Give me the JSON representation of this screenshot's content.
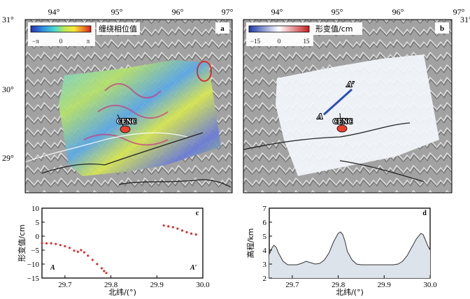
{
  "map_a": {
    "panel_label": "a",
    "colorbar_title": "缠绕相位值",
    "colorbar_ticks": [
      "−π",
      "0",
      "π"
    ],
    "lon_ticks": [
      "94°",
      "95°",
      "96°",
      "97°"
    ],
    "lat_ticks": [
      "31°",
      "30°",
      "29°"
    ],
    "station": "CENC"
  },
  "map_b": {
    "panel_label": "b",
    "colorbar_title": "形变值/cm",
    "colorbar_ticks": [
      "−15",
      "0",
      "15"
    ],
    "lon_ticks": [
      "94°",
      "95°",
      "96°",
      "97°"
    ],
    "lat_ticks": [
      "31°"
    ],
    "station": "CENC",
    "profile_start": "A",
    "profile_end": "A′"
  },
  "colors": {
    "relief": "#9e9e9e",
    "epicenter": "#e8402a",
    "profile_line": "#2a4fb8",
    "deformation_points": "#d93030",
    "elevation_fill": "#dde3ea"
  },
  "chart_data": [
    {
      "type": "scatter",
      "panel_label": "c",
      "xlabel": "北纬/(°)",
      "ylabel": "形变值/cm",
      "xlim": [
        29.65,
        30.0
      ],
      "ylim": [
        -15,
        10
      ],
      "x_ticks": [
        "29.7",
        "29.8",
        "29.9",
        "30.0"
      ],
      "y_ticks": [
        "10",
        "5",
        "0",
        "−5",
        "−10",
        "−15"
      ],
      "start_label": "A",
      "end_label": "A′",
      "series": [
        {
          "x": [
            29.65,
            29.66,
            29.67,
            29.68,
            29.69,
            29.7,
            29.71,
            29.72,
            29.728,
            29.735,
            29.742,
            29.75,
            29.76,
            29.77,
            29.78,
            29.785,
            29.79
          ],
          "y": [
            -2.5,
            -2.6,
            -2.6,
            -2.8,
            -3.2,
            -3.6,
            -4.2,
            -5.2,
            -5.6,
            -5.0,
            -5.8,
            -7.0,
            -8.5,
            -10.0,
            -11.5,
            -12.5,
            -13.2
          ]
        },
        {
          "x": [
            29.915,
            29.925,
            29.935,
            29.945,
            29.955,
            29.965,
            29.975,
            29.985
          ],
          "y": [
            3.8,
            3.5,
            3.2,
            2.7,
            2.0,
            1.4,
            0.9,
            0.6
          ]
        }
      ]
    },
    {
      "type": "area",
      "panel_label": "d",
      "xlabel": "北纬/(°)",
      "ylabel": "高程/km",
      "xlim": [
        29.65,
        30.0
      ],
      "ylim": [
        2,
        7
      ],
      "x_ticks": [
        "29.7",
        "29.8",
        "29.9",
        "30.0"
      ],
      "y_ticks": [
        "7",
        "6",
        "5",
        "4",
        "3",
        "2"
      ],
      "x": [
        29.65,
        29.655,
        29.66,
        29.665,
        29.67,
        29.68,
        29.69,
        29.7,
        29.71,
        29.72,
        29.73,
        29.74,
        29.75,
        29.76,
        29.77,
        29.78,
        29.79,
        29.8,
        29.805,
        29.81,
        29.815,
        29.82,
        29.83,
        29.84,
        29.85,
        29.86,
        29.87,
        29.88,
        29.89,
        29.9,
        29.91,
        29.92,
        29.93,
        29.94,
        29.95,
        29.96,
        29.97,
        29.98,
        29.985,
        29.99,
        29.995,
        30.0
      ],
      "y": [
        3.7,
        4.1,
        4.35,
        4.2,
        3.8,
        3.2,
        2.95,
        2.95,
        2.95,
        3.05,
        3.2,
        3.1,
        3.0,
        3.05,
        3.3,
        3.8,
        4.6,
        5.2,
        5.3,
        5.1,
        4.6,
        3.9,
        3.3,
        3.0,
        2.95,
        2.95,
        2.95,
        2.95,
        2.95,
        2.95,
        2.95,
        2.95,
        3.0,
        3.2,
        3.6,
        4.2,
        4.8,
        5.2,
        5.1,
        4.7,
        4.3,
        4.0
      ]
    }
  ]
}
